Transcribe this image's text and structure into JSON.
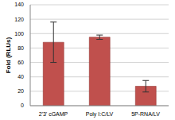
{
  "chart_data": {
    "type": "bar",
    "y_label": "Fold (RLUs)",
    "categories": [
      "2'3' cGAMP",
      "Poly I:C/LV",
      "5P-RNA/LV"
    ],
    "values": [
      88,
      95,
      27
    ],
    "errors": [
      28,
      3,
      8
    ],
    "color": "#c0504d",
    "ylim": [
      0,
      140
    ],
    "yticks": [
      0,
      20,
      40,
      60,
      80,
      100,
      120,
      140
    ],
    "grid": true
  }
}
